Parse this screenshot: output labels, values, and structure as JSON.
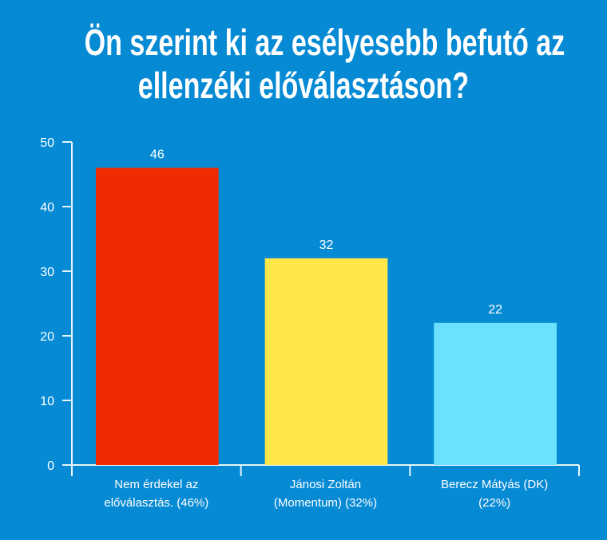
{
  "chart_data": {
    "type": "bar",
    "title_lines": [
      "Ön szerint ki az esélyesebb befutó az",
      "ellenzéki előválasztáson?"
    ],
    "categories": [
      [
        "Nem érdekel az",
        "előválasztás. (46%)"
      ],
      [
        "Jánosi Zoltán",
        "(Momentum) (32%)"
      ],
      [
        "Berecz Mátyás (DK)",
        "(22%)"
      ]
    ],
    "values": [
      46,
      32,
      22
    ],
    "data_labels": [
      "46",
      "32",
      "22"
    ],
    "colors": [
      "#f22a02",
      "#ffe74a",
      "#6ce1ff"
    ],
    "ylim": [
      0,
      50
    ],
    "yticks": [
      0,
      10,
      20,
      30,
      40,
      50
    ],
    "xlabel": "",
    "ylabel": "",
    "grid": false,
    "legend": "none"
  }
}
